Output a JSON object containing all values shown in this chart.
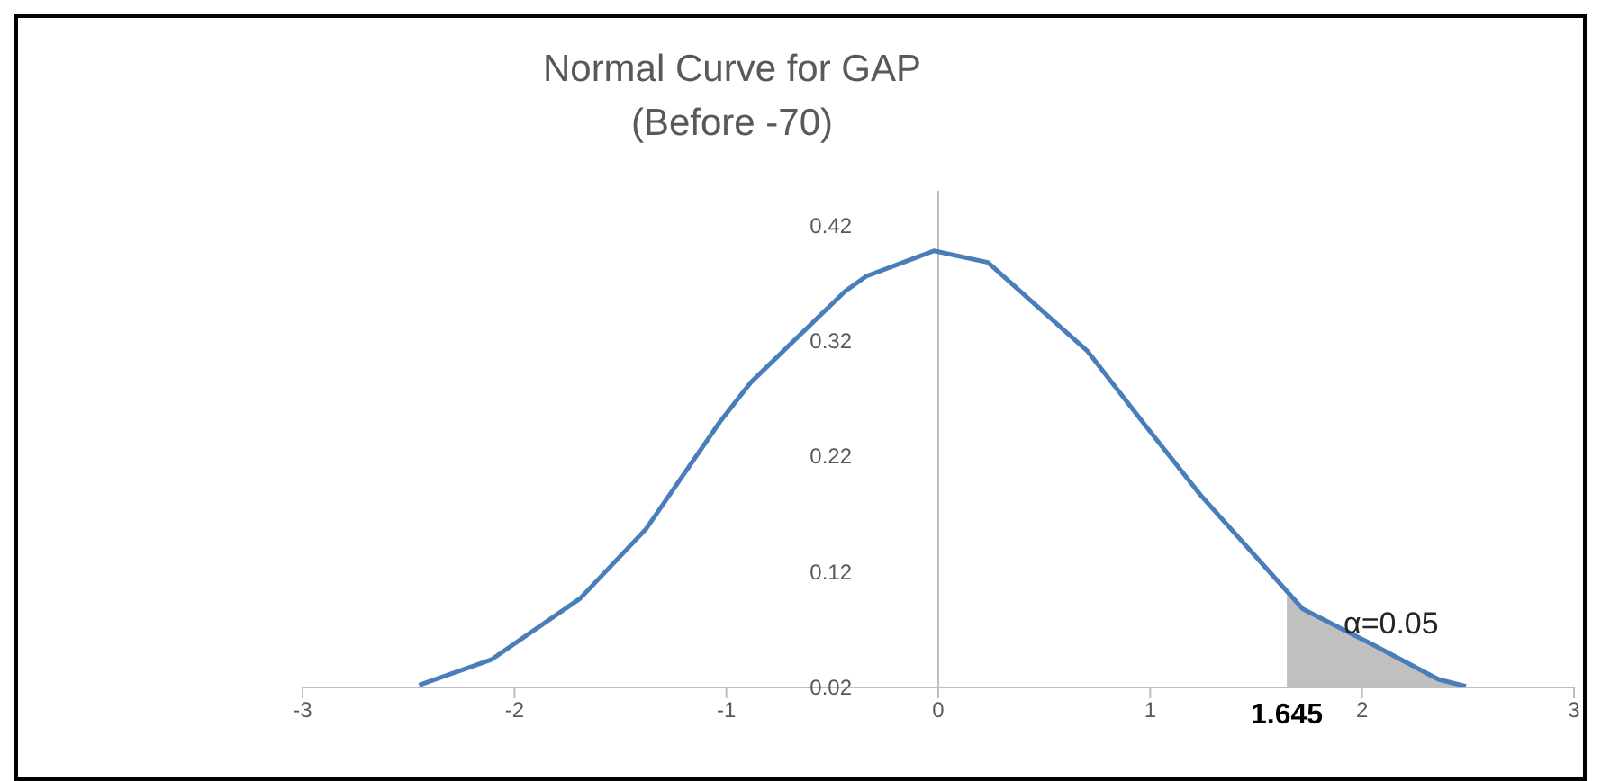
{
  "chart_data": {
    "type": "line",
    "title": "Normal Curve for GAP\n(Before -70)",
    "xlim": [
      -3,
      3
    ],
    "xticks": [
      -3,
      -2,
      -1,
      0,
      1,
      2,
      3
    ],
    "ylim": [
      0.02,
      0.45
    ],
    "yticks": [
      0.02,
      0.12,
      0.22,
      0.32,
      0.42
    ],
    "series": [
      {
        "color": "#4a7ebb",
        "x": [
          -2.45,
          -2.11,
          -1.69,
          -1.38,
          -1.03,
          -0.885,
          -0.44,
          -0.34,
          -0.02,
          0.234,
          0.705,
          0.985,
          1.24,
          1.72,
          2.03,
          2.36,
          2.49
        ],
        "values": [
          0.022,
          0.044,
          0.097,
          0.157,
          0.25,
          0.284,
          0.363,
          0.376,
          0.398,
          0.388,
          0.311,
          0.245,
          0.186,
          0.088,
          0.059,
          0.027,
          0.021
        ]
      },
      {
        "type": "area",
        "color": "#c0c0c0",
        "x": [
          1.645,
          1.72,
          2.03,
          2.36,
          2.49
        ],
        "values": [
          0.1,
          0.088,
          0.059,
          0.027,
          0.021
        ]
      }
    ],
    "annotations": [
      "α=0.05",
      {
        "text": "1.645",
        "x": 1.645,
        "y": 0.02
      }
    ]
  }
}
